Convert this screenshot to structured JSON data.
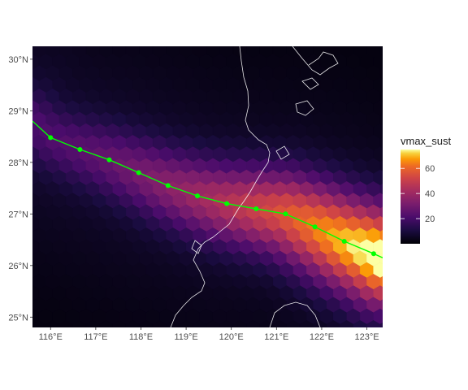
{
  "chart_data": {
    "type": "heatmap",
    "title": "",
    "xlabel": "",
    "ylabel": "",
    "xlim": [
      115.6,
      123.35
    ],
    "ylim": [
      24.8,
      30.25
    ],
    "x_ticks": [
      116,
      117,
      118,
      119,
      120,
      121,
      122,
      123
    ],
    "x_tick_labels": [
      "116°E",
      "117°E",
      "118°E",
      "119°E",
      "120°E",
      "121°E",
      "122°E",
      "123°E"
    ],
    "y_ticks": [
      25,
      26,
      27,
      28,
      29,
      30
    ],
    "y_tick_labels": [
      "25°N",
      "26°N",
      "27°N",
      "28°N",
      "29°N",
      "30°N"
    ],
    "fill_variable": "vmax_sust",
    "color_scale": "inferno",
    "legend": {
      "title": "vmax_sust",
      "range": [
        0,
        75
      ],
      "breaks": [
        20,
        40,
        60
      ],
      "break_labels": [
        "20",
        "40",
        "60"
      ],
      "placement": "right"
    },
    "track": {
      "color": "#00ff00",
      "points": [
        {
          "lon": 116.0,
          "lat": 28.48
        },
        {
          "lon": 116.65,
          "lat": 28.25
        },
        {
          "lon": 117.3,
          "lat": 28.05
        },
        {
          "lon": 117.95,
          "lat": 27.8
        },
        {
          "lon": 118.6,
          "lat": 27.55
        },
        {
          "lon": 119.25,
          "lat": 27.35
        },
        {
          "lon": 119.9,
          "lat": 27.2
        },
        {
          "lon": 120.55,
          "lat": 27.1
        },
        {
          "lon": 121.2,
          "lat": 27.0
        },
        {
          "lon": 121.85,
          "lat": 26.75
        },
        {
          "lon": 122.5,
          "lat": 26.47
        },
        {
          "lon": 123.15,
          "lat": 26.23
        }
      ],
      "line_extension": [
        {
          "lon": 115.6,
          "lat": 28.8
        },
        {
          "lon": 123.35,
          "lat": 26.15
        }
      ]
    },
    "grid": true
  },
  "colors": {
    "panel_background": "#ffffff",
    "track_color": "#00ff00",
    "coastline_color": "#ffffff"
  }
}
